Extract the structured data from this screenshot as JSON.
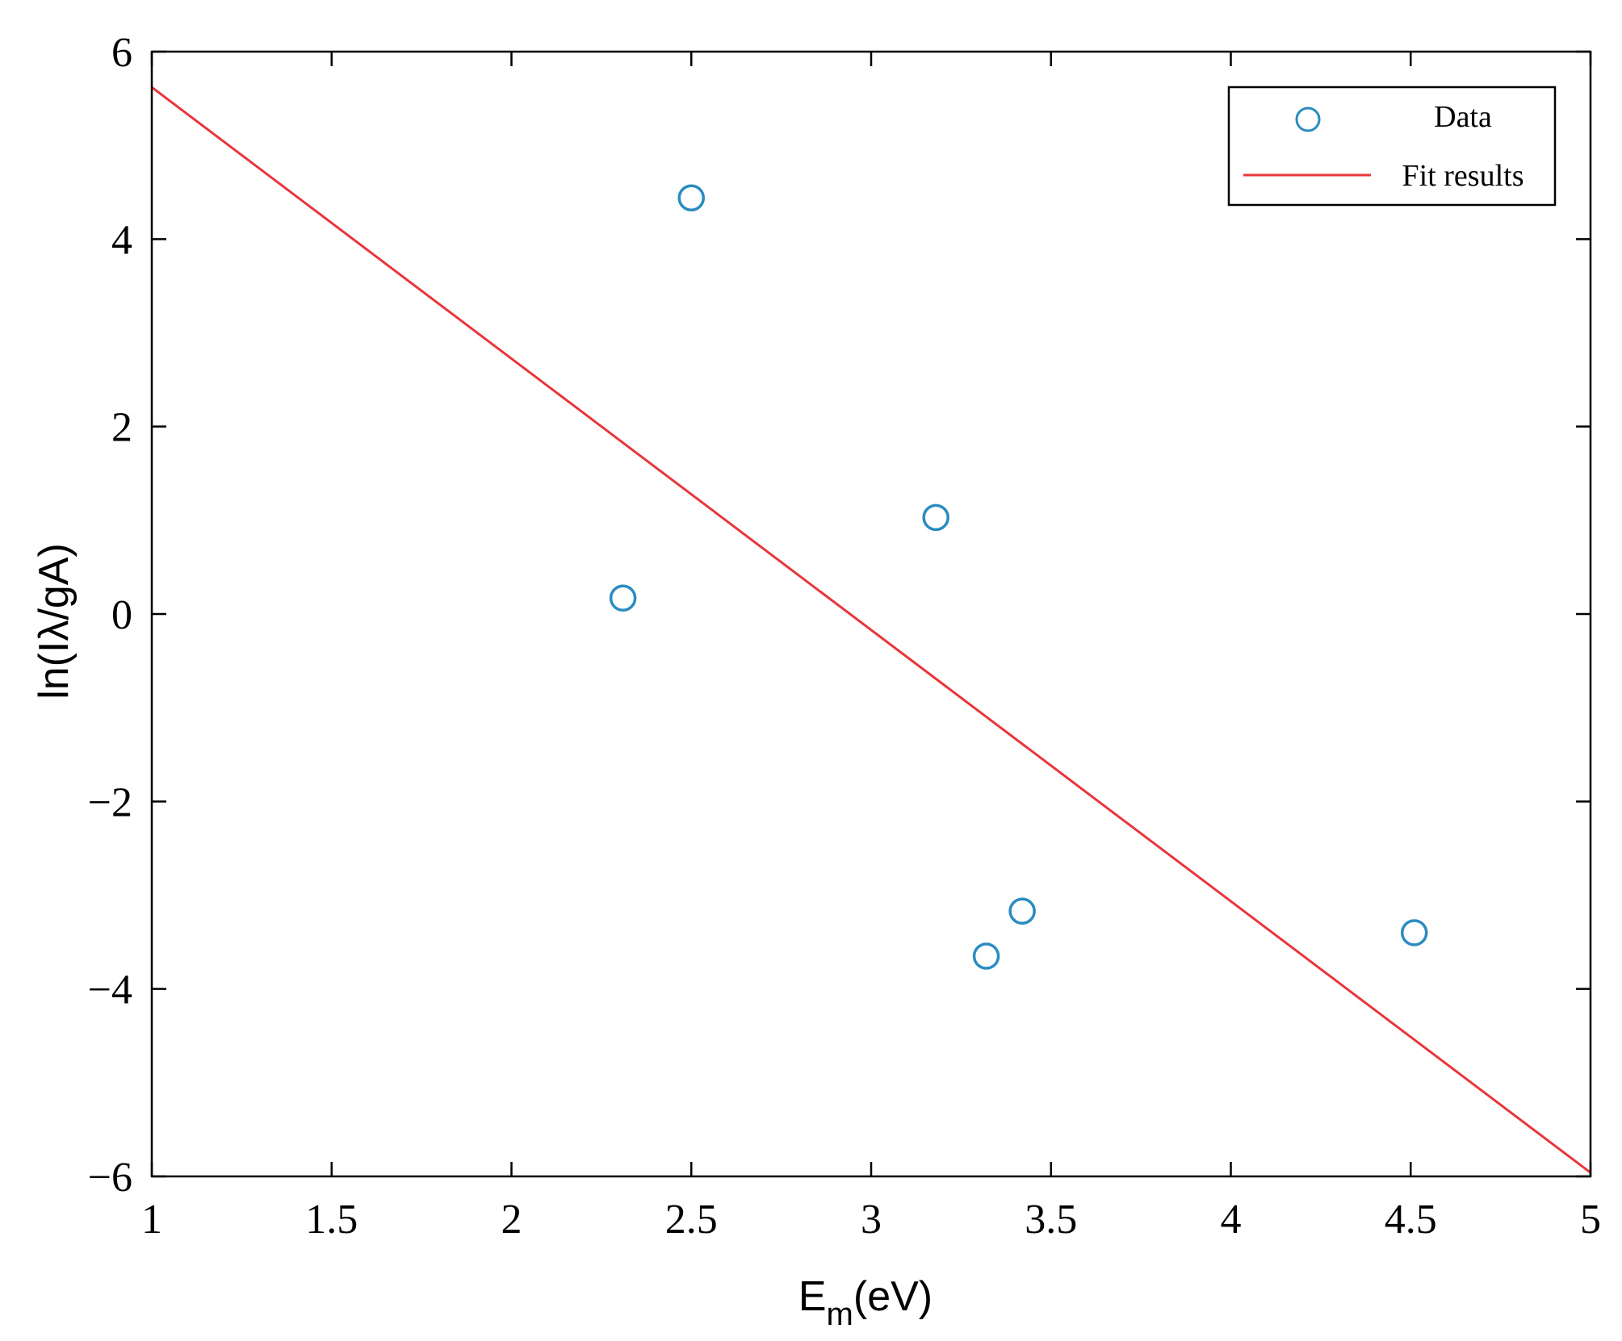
{
  "chart_data": {
    "type": "scatter",
    "title": "",
    "xlabel": {
      "main": "E",
      "sub": "m",
      "tail": "(eV)"
    },
    "ylabel": "ln(Iλ/gA)",
    "xlim": [
      1,
      5
    ],
    "ylim": [
      -6,
      6
    ],
    "xticks": [
      1,
      1.5,
      2,
      2.5,
      3,
      3.5,
      4,
      4.5,
      5
    ],
    "xtick_labels": [
      "1",
      "1.5",
      "2",
      "2.5",
      "3",
      "3.5",
      "4",
      "4.5",
      "5"
    ],
    "yticks": [
      -6,
      -4,
      -2,
      0,
      2,
      4,
      6
    ],
    "ytick_labels": [
      "−6",
      "−4",
      "−2",
      "0",
      "2",
      "4",
      "6"
    ],
    "grid": false,
    "legend_position": "top-right",
    "series": [
      {
        "name": "Data",
        "kind": "scatter",
        "marker": "open-circle",
        "color": "#2a8cc0",
        "x": [
          2.31,
          2.5,
          3.18,
          3.32,
          3.42,
          4.51
        ],
        "y": [
          0.17,
          4.44,
          1.03,
          -3.65,
          -3.17,
          -3.4
        ]
      },
      {
        "name": "Fit results",
        "kind": "line",
        "color": "#e8363b",
        "x": [
          1,
          5
        ],
        "y": [
          5.62,
          -5.96
        ]
      }
    ]
  }
}
